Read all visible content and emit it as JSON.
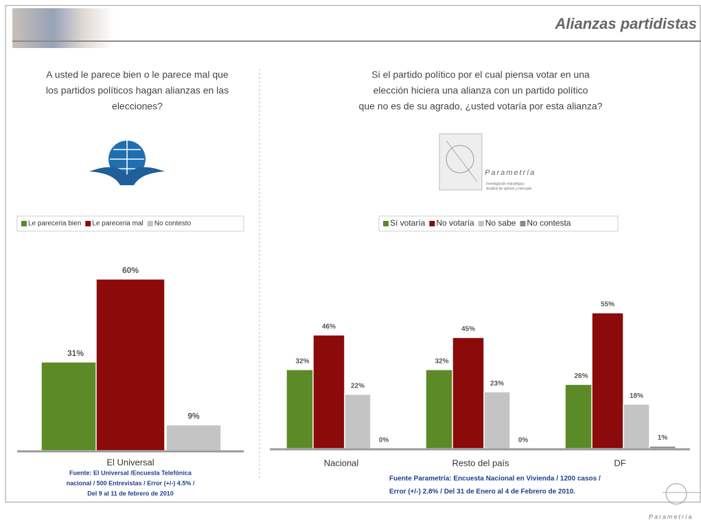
{
  "header": {
    "title": "Alianzas partidistas"
  },
  "chart_data": [
    {
      "type": "bar",
      "title": [
        "A usted le parece bien o le parece mal que",
        "los partidos políticos hagan alianzas en las",
        "elecciones?"
      ],
      "categories": [
        "El Universal"
      ],
      "series": [
        {
          "name": "Le pareceria bien",
          "color": "#5b8a26",
          "values": [
            31
          ],
          "value_labels": [
            "31%"
          ]
        },
        {
          "name": "Le pareceria mal",
          "color": "#8b0a0a",
          "values": [
            60
          ],
          "value_labels": [
            "60%"
          ]
        },
        {
          "name": "No contesto",
          "color": "#c4c4c4",
          "values": [
            9
          ],
          "value_labels": [
            "9%"
          ]
        }
      ],
      "source": [
        "Fuente: El Universal /Encuesta Telefónica",
        "nacional / 500 Entrevistas / Error (+/-) 4.5% /",
        "Del 9 al 11 de febrero de 2010"
      ]
    },
    {
      "type": "bar",
      "title": [
        "Si el partido político por el cual piensa votar en una",
        "elección hiciera una alianza con un partido político",
        "que no es de su agrado, ¿usted votaría por esta alianza?"
      ],
      "categories": [
        "Nacional",
        "Resto del país",
        "DF"
      ],
      "series": [
        {
          "name": "Sí votaría",
          "color": "#5b8a26",
          "values": [
            32,
            32,
            26
          ],
          "value_labels": [
            "32%",
            "32%",
            "26%"
          ]
        },
        {
          "name": "No votaría",
          "color": "#8b0a0a",
          "values": [
            46,
            45,
            55
          ],
          "value_labels": [
            "46%",
            "45%",
            "55%"
          ]
        },
        {
          "name": "No sabe",
          "color": "#c4c4c4",
          "values": [
            22,
            23,
            18
          ],
          "value_labels": [
            "22%",
            "23%",
            "18%"
          ]
        },
        {
          "name": "No contesta",
          "color": "#8a8a8a",
          "values": [
            0,
            0,
            1
          ],
          "value_labels": [
            "0%",
            "0%",
            "1%"
          ]
        }
      ],
      "source": [
        "Fuente Parametría: Encuesta Nacional en Vivienda / 1200 casos /",
        "Error (+/-) 2.8% / Del 31 de Enero al 4 de Febrero de 2010."
      ]
    }
  ],
  "logos": {
    "parametria": "Parametría",
    "tagline": [
      "Investigación estratégica",
      "Análisis de opinión y mercado"
    ],
    "footer": "Parametría"
  }
}
